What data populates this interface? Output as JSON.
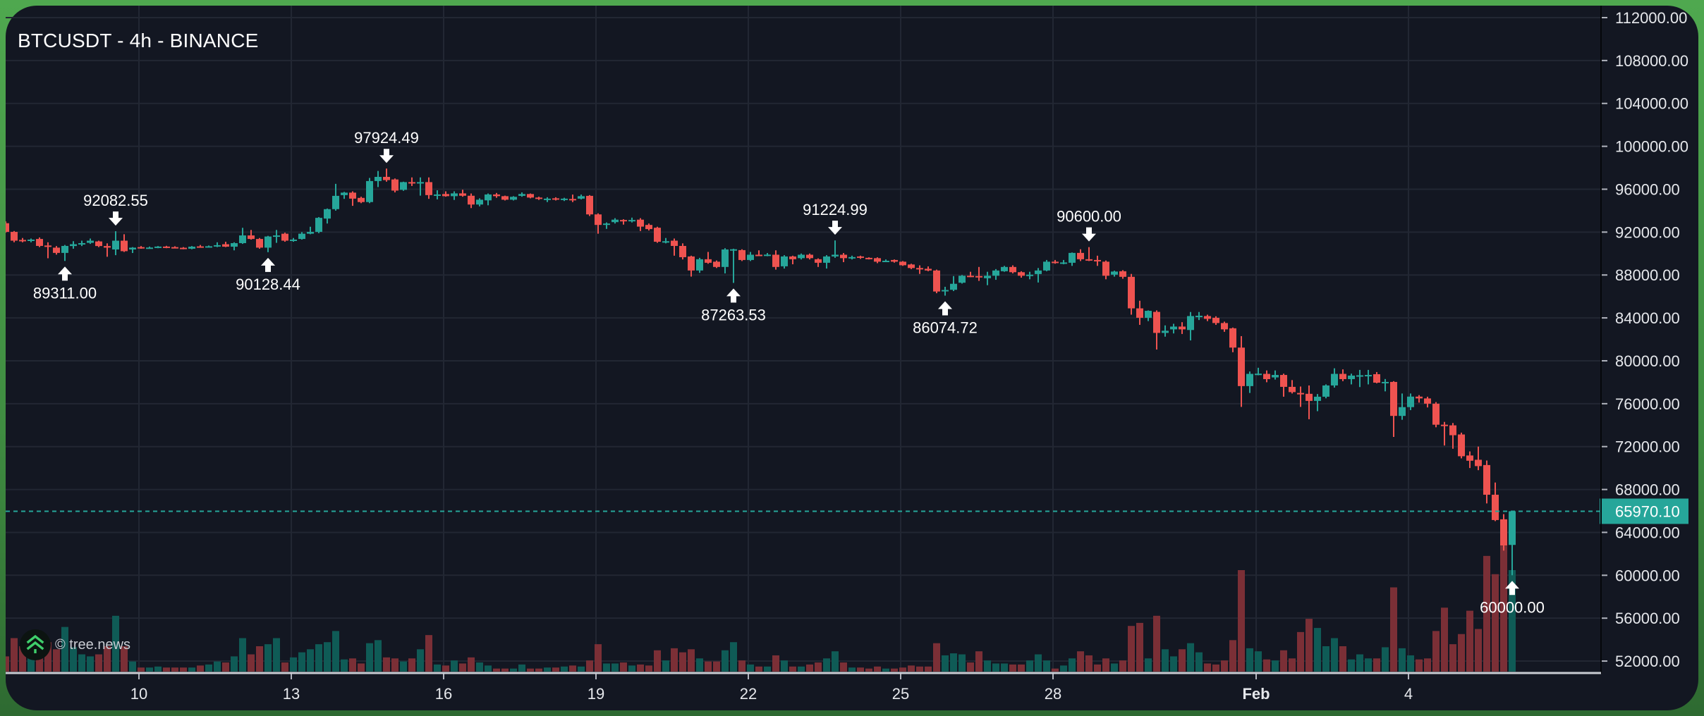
{
  "header": {
    "title": "BTCUSDT - 4h - BINANCE"
  },
  "brand": {
    "text": "© tree.news",
    "icon": "tree-chevrons-icon"
  },
  "colors": {
    "up": "#26a69a",
    "down": "#ef5350",
    "vol_up": "#0f5b56",
    "vol_down": "#7b2f36",
    "grid": "#222733",
    "frame": "#4aa84a",
    "background": "#131722"
  },
  "chart_data": {
    "type": "candlestick",
    "title": "BTCUSDT - 4h - BINANCE",
    "symbol": "BTCUSDT",
    "interval": "4h",
    "exchange": "BINANCE",
    "ylim": [
      50900,
      112000
    ],
    "y_ticks": [
      "112000.00",
      "108000.00",
      "104000.00",
      "100000.00",
      "96000.00",
      "92000.00",
      "88000.00",
      "84000.00",
      "80000.00",
      "76000.00",
      "72000.00",
      "68000.00",
      "64000.00",
      "60000.00",
      "56000.00",
      "52000.00"
    ],
    "x_ticks": [
      {
        "label": "10",
        "day": 10,
        "bold": false
      },
      {
        "label": "13",
        "day": 13,
        "bold": false
      },
      {
        "label": "16",
        "day": 16,
        "bold": false
      },
      {
        "label": "19",
        "day": 19,
        "bold": false
      },
      {
        "label": "22",
        "day": 22,
        "bold": false
      },
      {
        "label": "25",
        "day": 25,
        "bold": false
      },
      {
        "label": "28",
        "day": 28,
        "bold": false
      },
      {
        "label": "Feb",
        "day": 32,
        "bold": true
      },
      {
        "label": "4",
        "day": 35,
        "bold": false
      }
    ],
    "current_price": {
      "value": 65970.1,
      "label": "65970.10"
    },
    "annotations": [
      {
        "index": 7,
        "type": "low",
        "label": "89311.00",
        "price": 89311.0
      },
      {
        "index": 13,
        "type": "high",
        "label": "92082.55",
        "price": 92082.55
      },
      {
        "index": 31,
        "type": "low",
        "label": "90128.44",
        "price": 90128.44
      },
      {
        "index": 45,
        "type": "high",
        "label": "97924.49",
        "price": 97924.49
      },
      {
        "index": 86,
        "type": "low",
        "label": "87263.53",
        "price": 87263.53
      },
      {
        "index": 98,
        "type": "high",
        "label": "91224.99",
        "price": 91224.99
      },
      {
        "index": 111,
        "type": "low",
        "label": "86074.72",
        "price": 86074.72
      },
      {
        "index": 128,
        "type": "high",
        "label": "90600.00",
        "price": 90600.0
      },
      {
        "index": 178,
        "type": "low",
        "label": "60000.00",
        "price": 60000.0
      }
    ],
    "candle_fields": [
      "open",
      "high",
      "low",
      "close",
      "volume_relative"
    ],
    "candles": [
      [
        92830,
        93000,
        91950,
        92020,
        15
      ],
      [
        92020,
        92100,
        91050,
        91200,
        33
      ],
      [
        91270,
        91450,
        91050,
        91200,
        25
      ],
      [
        91200,
        91400,
        91050,
        91300,
        15
      ],
      [
        91360,
        91500,
        90600,
        90710,
        17
      ],
      [
        90750,
        91050,
        89560,
        90700,
        29
      ],
      [
        90550,
        90700,
        89900,
        90060,
        22
      ],
      [
        90060,
        90800,
        89311,
        90710,
        44
      ],
      [
        90700,
        91150,
        90450,
        90870,
        24
      ],
      [
        90900,
        91200,
        90700,
        90970,
        17
      ],
      [
        91000,
        91400,
        90900,
        91200,
        15
      ],
      [
        91130,
        91200,
        90600,
        90700,
        17
      ],
      [
        90700,
        90950,
        89700,
        90550,
        25
      ],
      [
        90380,
        92082,
        89850,
        91200,
        55
      ],
      [
        91200,
        91800,
        90150,
        90220,
        25
      ],
      [
        90380,
        90600,
        90050,
        90550,
        10
      ],
      [
        90600,
        90700,
        90450,
        90560,
        4
      ],
      [
        90550,
        90650,
        90450,
        90560,
        4
      ],
      [
        90600,
        90700,
        90500,
        90650,
        5
      ],
      [
        90650,
        90720,
        90500,
        90600,
        4
      ],
      [
        90600,
        90680,
        90480,
        90540,
        4
      ],
      [
        90540,
        90600,
        90400,
        90470,
        4
      ],
      [
        90450,
        90700,
        90400,
        90640,
        4
      ],
      [
        90670,
        90800,
        90550,
        90640,
        6
      ],
      [
        90640,
        90750,
        90580,
        90680,
        7
      ],
      [
        90680,
        91050,
        90600,
        90780,
        10
      ],
      [
        90870,
        91100,
        90600,
        90640,
        9
      ],
      [
        90640,
        91050,
        90300,
        90970,
        15
      ],
      [
        90970,
        92400,
        90900,
        91690,
        33
      ],
      [
        91690,
        92200,
        91300,
        91360,
        17
      ],
      [
        91360,
        91450,
        90450,
        90550,
        25
      ],
      [
        90550,
        91650,
        90128,
        91590,
        27
      ],
      [
        91590,
        92200,
        91000,
        91690,
        33
      ],
      [
        91850,
        91950,
        91100,
        91200,
        9
      ],
      [
        91200,
        91450,
        91100,
        91300,
        14
      ],
      [
        91360,
        92000,
        91300,
        91850,
        19
      ],
      [
        91850,
        92500,
        91800,
        92020,
        22
      ],
      [
        92020,
        93400,
        91900,
        93330,
        27
      ],
      [
        93260,
        94200,
        92800,
        94140,
        29
      ],
      [
        94140,
        96500,
        94000,
        95380,
        40
      ],
      [
        95450,
        95750,
        95100,
        95680,
        12
      ],
      [
        95680,
        95800,
        94450,
        95120,
        13
      ],
      [
        95190,
        95300,
        94700,
        94800,
        8
      ],
      [
        94800,
        97050,
        94700,
        96760,
        28
      ],
      [
        96760,
        97700,
        96200,
        97150,
        31
      ],
      [
        97150,
        97924,
        96700,
        96850,
        14
      ],
      [
        96910,
        97000,
        95700,
        95870,
        13
      ],
      [
        95940,
        96700,
        95850,
        96660,
        10
      ],
      [
        96660,
        97100,
        96300,
        96600,
        13
      ],
      [
        96600,
        97100,
        95400,
        96660,
        22
      ],
      [
        96660,
        97100,
        95100,
        95450,
        36
      ],
      [
        95450,
        95900,
        95050,
        95510,
        7
      ],
      [
        95550,
        95800,
        95300,
        95350,
        6
      ],
      [
        95350,
        95800,
        95000,
        95610,
        11
      ],
      [
        95610,
        95950,
        95300,
        95390,
        8
      ],
      [
        95390,
        95600,
        94240,
        94570,
        14
      ],
      [
        94570,
        95150,
        94400,
        95020,
        9
      ],
      [
        94960,
        95600,
        94500,
        95510,
        6
      ],
      [
        95510,
        95650,
        95200,
        95350,
        3
      ],
      [
        95350,
        95400,
        94950,
        95020,
        3
      ],
      [
        95020,
        95350,
        94950,
        95290,
        3
      ],
      [
        95380,
        95700,
        95300,
        95550,
        7
      ],
      [
        95550,
        95600,
        95150,
        95220,
        3
      ],
      [
        95220,
        95300,
        95000,
        95090,
        3
      ],
      [
        95060,
        95250,
        94800,
        95120,
        4
      ],
      [
        95150,
        95250,
        94950,
        95020,
        4
      ],
      [
        95020,
        95200,
        94900,
        95120,
        5
      ],
      [
        95090,
        95500,
        94800,
        95060,
        6
      ],
      [
        95120,
        95500,
        95050,
        95350,
        5
      ],
      [
        95380,
        95450,
        93500,
        93650,
        11
      ],
      [
        93650,
        93750,
        91850,
        92670,
        27
      ],
      [
        92670,
        92900,
        92300,
        92800,
        8
      ],
      [
        92930,
        93300,
        92800,
        93160,
        8
      ],
      [
        93130,
        93200,
        92700,
        93000,
        9
      ],
      [
        93000,
        93350,
        92900,
        93130,
        6
      ],
      [
        93160,
        93300,
        92100,
        92510,
        7
      ],
      [
        92670,
        92800,
        92150,
        92280,
        6
      ],
      [
        92410,
        92500,
        91000,
        91100,
        21
      ],
      [
        91100,
        91450,
        90950,
        91150,
        11
      ],
      [
        91200,
        91400,
        89800,
        90710,
        23
      ],
      [
        90710,
        90950,
        89450,
        89660,
        19
      ],
      [
        89730,
        89800,
        87850,
        88420,
        22
      ],
      [
        88420,
        89600,
        88200,
        89470,
        13
      ],
      [
        89470,
        90150,
        89050,
        89140,
        10
      ],
      [
        89240,
        89350,
        88650,
        88750,
        10
      ],
      [
        88750,
        90500,
        88150,
        90380,
        21
      ],
      [
        90380,
        90450,
        87263,
        90400,
        29
      ],
      [
        90320,
        90400,
        89300,
        89400,
        11
      ],
      [
        89400,
        90150,
        89300,
        89890,
        7
      ],
      [
        89890,
        90300,
        89800,
        89860,
        5
      ],
      [
        89860,
        90050,
        89750,
        89900,
        5
      ],
      [
        89890,
        90300,
        88500,
        88750,
        16
      ],
      [
        88810,
        89850,
        88600,
        89730,
        11
      ],
      [
        89730,
        89800,
        89000,
        89470,
        5
      ],
      [
        89570,
        90000,
        89450,
        89890,
        5
      ],
      [
        89890,
        90000,
        89450,
        89570,
        7
      ],
      [
        89470,
        89550,
        88750,
        89140,
        9
      ],
      [
        89140,
        89850,
        88600,
        89730,
        13
      ],
      [
        89730,
        91225,
        89600,
        89890,
        20
      ],
      [
        89890,
        90050,
        89200,
        89570,
        9
      ],
      [
        89570,
        89800,
        89450,
        89670,
        4
      ],
      [
        89730,
        89800,
        89500,
        89600,
        4
      ],
      [
        89600,
        89650,
        89450,
        89570,
        3
      ],
      [
        89570,
        89650,
        89100,
        89240,
        5
      ],
      [
        89300,
        89450,
        89200,
        89330,
        3
      ],
      [
        89400,
        89450,
        89150,
        89240,
        3
      ],
      [
        89240,
        89300,
        88850,
        88910,
        4
      ],
      [
        88980,
        89050,
        88550,
        88650,
        6
      ],
      [
        88650,
        88900,
        88100,
        88620,
        5
      ],
      [
        88580,
        88800,
        88350,
        88420,
        5
      ],
      [
        88420,
        88500,
        86300,
        86460,
        28
      ],
      [
        86530,
        86900,
        86075,
        86600,
        16
      ],
      [
        86620,
        87900,
        86500,
        87180,
        18
      ],
      [
        87280,
        88000,
        87200,
        87930,
        17
      ],
      [
        87930,
        88300,
        87800,
        87900,
        9
      ],
      [
        87900,
        88750,
        87450,
        87770,
        20
      ],
      [
        87700,
        88300,
        87050,
        87930,
        11
      ],
      [
        87930,
        88550,
        87550,
        88420,
        8
      ],
      [
        88350,
        88850,
        88300,
        88750,
        8
      ],
      [
        88750,
        88900,
        88150,
        88260,
        7
      ],
      [
        88260,
        88350,
        87750,
        87930,
        7
      ],
      [
        87970,
        88300,
        87600,
        88030,
        11
      ],
      [
        88090,
        88650,
        87300,
        88420,
        17
      ],
      [
        88420,
        89400,
        88350,
        89240,
        11
      ],
      [
        89240,
        89400,
        89050,
        89200,
        3
      ],
      [
        89140,
        89400,
        89000,
        89170,
        6
      ],
      [
        89140,
        90100,
        88850,
        90060,
        13
      ],
      [
        90060,
        90400,
        89300,
        89470,
        20
      ],
      [
        89470,
        90600,
        89300,
        89400,
        16
      ],
      [
        89400,
        89800,
        88850,
        89380,
        7
      ],
      [
        89240,
        89350,
        87600,
        87930,
        13
      ],
      [
        88030,
        88400,
        87850,
        88320,
        8
      ],
      [
        88350,
        88450,
        87650,
        87830,
        11
      ],
      [
        87830,
        88100,
        84300,
        84890,
        45
      ],
      [
        84890,
        85600,
        83350,
        84010,
        48
      ],
      [
        84010,
        84700,
        83700,
        84660,
        13
      ],
      [
        84560,
        84700,
        81050,
        82600,
        55
      ],
      [
        82600,
        83300,
        82250,
        82800,
        22
      ],
      [
        82930,
        83450,
        82550,
        83190,
        15
      ],
      [
        83190,
        83600,
        82500,
        82930,
        22
      ],
      [
        82870,
        84550,
        81900,
        84170,
        28
      ],
      [
        84170,
        84550,
        83800,
        84200,
        19
      ],
      [
        84170,
        84300,
        83700,
        83910,
        8
      ],
      [
        84010,
        84150,
        83350,
        83520,
        7
      ],
      [
        83520,
        83650,
        82700,
        82930,
        11
      ],
      [
        83030,
        83100,
        80800,
        81230,
        31
      ],
      [
        81230,
        82300,
        75700,
        77640,
        100
      ],
      [
        77640,
        79000,
        77000,
        78780,
        23
      ],
      [
        78780,
        79350,
        78650,
        78800,
        20
      ],
      [
        78780,
        79100,
        78000,
        78290,
        12
      ],
      [
        78450,
        79100,
        78250,
        78680,
        11
      ],
      [
        78680,
        78800,
        76650,
        77570,
        21
      ],
      [
        77570,
        78200,
        76950,
        77080,
        13
      ],
      [
        77000,
        77600,
        75700,
        76980,
        39
      ],
      [
        76920,
        77700,
        74550,
        76260,
        52
      ],
      [
        76260,
        76900,
        75300,
        76650,
        43
      ],
      [
        76650,
        77800,
        76500,
        77700,
        25
      ],
      [
        77700,
        79300,
        77500,
        78780,
        33
      ],
      [
        78780,
        79200,
        78100,
        78290,
        25
      ],
      [
        78290,
        78800,
        77800,
        78620,
        12
      ],
      [
        78620,
        79150,
        77550,
        78650,
        17
      ],
      [
        78650,
        79150,
        77800,
        78680,
        13
      ],
      [
        78750,
        78950,
        77900,
        77960,
        13
      ],
      [
        77960,
        78300,
        77150,
        78030,
        24
      ],
      [
        78030,
        78100,
        72900,
        74860,
        83
      ],
      [
        74860,
        76950,
        74500,
        75680,
        23
      ],
      [
        75680,
        76950,
        75400,
        76660,
        16
      ],
      [
        76660,
        76800,
        76100,
        76490,
        12
      ],
      [
        76490,
        76650,
        75650,
        76000,
        13
      ],
      [
        76000,
        76150,
        73800,
        74040,
        40
      ],
      [
        74040,
        74300,
        72100,
        74000,
        63
      ],
      [
        73980,
        74200,
        71800,
        73060,
        27
      ],
      [
        73130,
        73300,
        70900,
        71100,
        37
      ],
      [
        71170,
        71550,
        70000,
        70680,
        60
      ],
      [
        70770,
        72000,
        69800,
        70180,
        42
      ],
      [
        70280,
        70700,
        66700,
        67510,
        114
      ],
      [
        67510,
        68650,
        65050,
        65150,
        96
      ],
      [
        65220,
        65700,
        62300,
        62770,
        124
      ],
      [
        62830,
        65970,
        60000,
        65970,
        100
      ]
    ]
  }
}
